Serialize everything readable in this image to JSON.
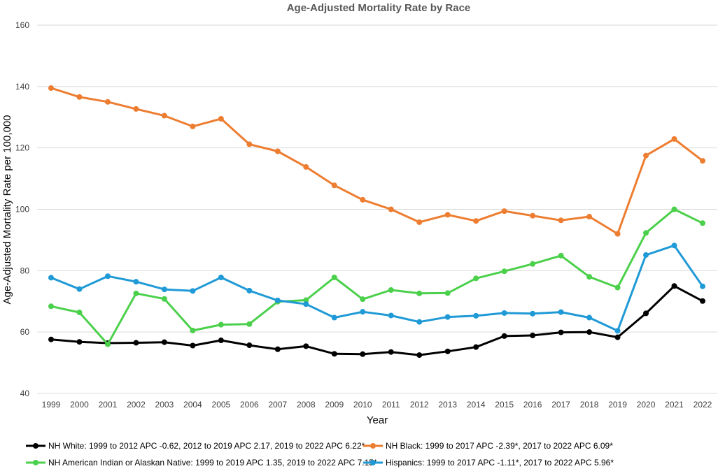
{
  "chart_data": {
    "type": "line",
    "title": "Age-Adjusted Mortality Rate by Race",
    "xlabel": "Year",
    "ylabel": "Age-Adjusted Mortality Rate per 100,000",
    "ylim": [
      40,
      160
    ],
    "yticks": [
      40,
      60,
      80,
      100,
      120,
      140,
      160
    ],
    "grid": true,
    "legend_position": "bottom",
    "categories": [
      "1999",
      "2000",
      "2001",
      "2002",
      "2003",
      "2004",
      "2005",
      "2006",
      "2007",
      "2008",
      "2009",
      "2010",
      "2011",
      "2012",
      "2013",
      "2014",
      "2015",
      "2016",
      "2017",
      "2018",
      "2019",
      "2020",
      "2021",
      "2022"
    ],
    "series": [
      {
        "name": "NH White: 1999 to 2012 APC -0.62, 2012 to 2019 APC 2.17, 2019 to 2022 APC 6.22*",
        "color": "#000000",
        "values": [
          57.6,
          56.8,
          56.4,
          56.5,
          56.7,
          55.6,
          57.3,
          55.7,
          54.4,
          55.4,
          52.9,
          52.8,
          53.5,
          52.5,
          53.7,
          55.1,
          58.7,
          58.9,
          59.9,
          60.0,
          58.3,
          66.1,
          75.0,
          70.1
        ]
      },
      {
        "name": "NH Black: 1999 to 2017 APC -2.39*, 2017 to 2022 APC 6.09*",
        "color": "#ed7d31",
        "values": [
          139.5,
          136.6,
          135.0,
          132.7,
          130.5,
          127.0,
          129.5,
          121.2,
          118.9,
          113.8,
          107.8,
          103.1,
          100.0,
          95.8,
          98.2,
          96.2,
          99.4,
          97.9,
          96.4,
          97.6,
          92.0,
          117.5,
          122.9,
          115.8
        ]
      },
      {
        "name": "NH American Indian or Alaskan Native: 1999 to 2019 APC 1.35, 2019 to 2022 APC 7.15*",
        "color": "#4bd04b",
        "values": [
          68.4,
          66.4,
          56.0,
          72.6,
          70.8,
          60.5,
          62.4,
          62.6,
          69.9,
          70.4,
          77.8,
          70.7,
          73.7,
          72.6,
          72.7,
          77.5,
          79.8,
          82.2,
          84.9,
          78.0,
          74.5,
          92.3,
          100.0,
          95.5
        ]
      },
      {
        "name": "Hispanics: 1999 to 2017 APC -1.11*, 2017 to 2022 APC 5.96*",
        "color": "#1f9ad6",
        "values": [
          77.7,
          74.0,
          78.2,
          76.4,
          73.9,
          73.4,
          77.8,
          73.5,
          70.3,
          69.1,
          64.7,
          66.6,
          65.4,
          63.3,
          64.9,
          65.3,
          66.2,
          66.0,
          66.5,
          64.7,
          60.4,
          85.1,
          88.2,
          74.9
        ]
      }
    ]
  }
}
